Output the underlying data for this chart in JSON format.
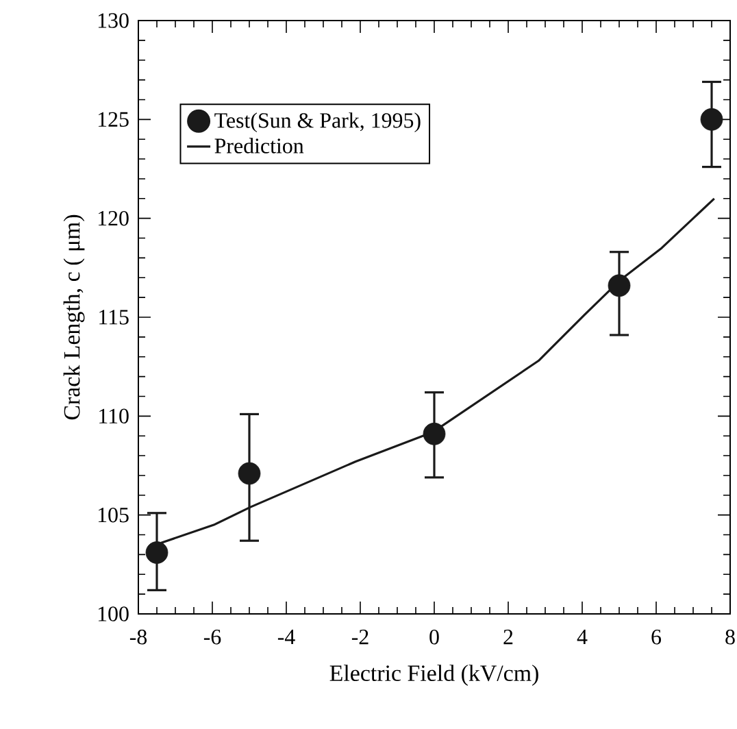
{
  "chart_data": {
    "type": "scatter",
    "xlabel": "Electric Field (kV/cm)",
    "ylabel": "Crack Length, c  ( μm)",
    "xlim": [
      -8,
      8
    ],
    "xticks": [
      -8,
      -6,
      -4,
      -2,
      0,
      2,
      4,
      6,
      8
    ],
    "ylim": [
      100,
      130
    ],
    "yticks": [
      100,
      105,
      110,
      115,
      120,
      125,
      130
    ],
    "legend": "top left",
    "grid": false,
    "series": [
      {
        "name": "Test(Sun & Park, 1995)",
        "type": "scatter",
        "marker": "circle",
        "color": "#1a1a1a",
        "x": [
          -7.5,
          -5,
          0,
          5,
          7.5
        ],
        "values": [
          103.1,
          107.1,
          109.1,
          116.6,
          125.0
        ],
        "errors": [
          [
            101.2,
            105.1
          ],
          [
            103.7,
            110.1
          ],
          [
            106.9,
            111.2
          ],
          [
            114.1,
            118.3
          ],
          [
            122.6,
            126.9
          ]
        ]
      },
      {
        "name": "Prediction",
        "type": "line",
        "marker": "none",
        "line_style": "solid",
        "color": "#1a1a1a",
        "x": [
          -7.53,
          -5.96,
          -4.97,
          -2.13,
          -0.03,
          2.82,
          4.05,
          5.04,
          6.15,
          7.57
        ],
        "values": [
          103.5,
          104.5,
          105.4,
          107.7,
          109.2,
          112.8,
          115.1,
          116.9,
          118.5,
          121.0
        ]
      }
    ]
  }
}
